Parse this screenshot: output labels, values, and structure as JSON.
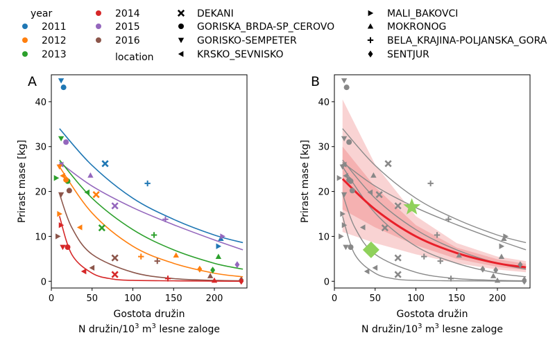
{
  "legend": {
    "year_title": "year",
    "location_title": "location",
    "years": [
      {
        "label": "2011",
        "color": "#1f77b4"
      },
      {
        "label": "2012",
        "color": "#ff7f0e"
      },
      {
        "label": "2013",
        "color": "#2ca02c"
      },
      {
        "label": "2014",
        "color": "#d62728"
      },
      {
        "label": "2015",
        "color": "#9467bd"
      },
      {
        "label": "2016",
        "color": "#8c564b"
      }
    ],
    "locations": [
      {
        "label": "DEKANI",
        "marker": "x"
      },
      {
        "label": "GORISKA_BRDA-SP_CEROVO",
        "marker": "circle"
      },
      {
        "label": "GORISKO-SEMPETER",
        "marker": "tri-down"
      },
      {
        "label": "KRSKO_SEVNISKO",
        "marker": "tri-left"
      },
      {
        "label": "MALI_BAKOVCI",
        "marker": "tri-right"
      },
      {
        "label": "MOKRONOG",
        "marker": "tri-up"
      },
      {
        "label": "BELA_KRAJINA-POLJANSKA_GORA",
        "marker": "plus"
      },
      {
        "label": "SENTJUR",
        "marker": "diamond"
      }
    ]
  },
  "chart_data": [
    {
      "type": "scatter",
      "panel_label": "A",
      "xlabel": "Gostota družin",
      "xlabel2": "N družin/10",
      "xlabel2_sup": "3",
      "xlabel2_mid": " m",
      "xlabel2_sup2": "3",
      "xlabel2_end": " lesne zaloge",
      "ylabel": "Prirast mase [kg]",
      "xlim": [
        0,
        240
      ],
      "ylim": [
        -1.5,
        46
      ],
      "xticks": [
        "0",
        "50",
        "100",
        "150",
        "200"
      ],
      "xtick_values": [
        0,
        50,
        100,
        150,
        200
      ],
      "yticks": [
        "0",
        "10",
        "20",
        "30",
        "40"
      ],
      "ytick_values": [
        0,
        10,
        20,
        30,
        40
      ],
      "fit_curves": [
        {
          "year": "2011",
          "color": "#1f77b4",
          "x": [
            10,
            50,
            100,
            150,
            200,
            235
          ],
          "y": [
            34,
            25.8,
            18.5,
            13.8,
            10.3,
            8.6
          ]
        },
        {
          "year": "2015",
          "color": "#9467bd",
          "x": [
            10,
            50,
            100,
            150,
            200,
            235
          ],
          "y": [
            26.5,
            21.2,
            16.4,
            12.6,
            9.2,
            7
          ]
        },
        {
          "year": "2013",
          "color": "#2ca02c",
          "x": [
            10,
            50,
            100,
            150,
            200,
            235
          ],
          "y": [
            27,
            18.5,
            11.5,
            7,
            4,
            2.7
          ]
        },
        {
          "year": "2012",
          "color": "#ff7f0e",
          "x": [
            10,
            50,
            100,
            150,
            200,
            235
          ],
          "y": [
            25.5,
            15.2,
            7.8,
            4,
            1.8,
            1
          ]
        },
        {
          "year": "2016",
          "color": "#8c564b",
          "x": [
            10,
            25,
            50,
            100,
            150,
            200,
            235
          ],
          "y": [
            19.5,
            12,
            6,
            2,
            0.6,
            0.2,
            0.1
          ]
        },
        {
          "year": "2014",
          "color": "#d62728",
          "x": [
            10,
            25,
            50,
            75,
            100,
            150,
            235
          ],
          "y": [
            14.5,
            6,
            1.8,
            0.5,
            0.2,
            0.1,
            0
          ]
        }
      ],
      "points": [
        {
          "x": 12,
          "y": 44.7,
          "year": "2011",
          "marker": "tri-down"
        },
        {
          "x": 15,
          "y": 43.2,
          "year": "2011",
          "marker": "circle"
        },
        {
          "x": 66,
          "y": 26.2,
          "year": "2011",
          "marker": "x"
        },
        {
          "x": 118,
          "y": 21.8,
          "year": "2011",
          "marker": "plus"
        },
        {
          "x": 205,
          "y": 7.8,
          "year": "2011",
          "marker": "tri-right"
        },
        {
          "x": 208,
          "y": 9.5,
          "year": "2011",
          "marker": "tri-up"
        },
        {
          "x": 18,
          "y": 31,
          "year": "2015",
          "marker": "circle"
        },
        {
          "x": 12,
          "y": 26,
          "year": "2015",
          "marker": "tri-left"
        },
        {
          "x": 48,
          "y": 23.6,
          "year": "2015",
          "marker": "tri-up"
        },
        {
          "x": 78,
          "y": 16.8,
          "year": "2015",
          "marker": "x"
        },
        {
          "x": 140,
          "y": 13.8,
          "year": "2015",
          "marker": "plus"
        },
        {
          "x": 210,
          "y": 10,
          "year": "2015",
          "marker": "tri-right"
        },
        {
          "x": 228,
          "y": 3.7,
          "year": "2015",
          "marker": "diamond"
        },
        {
          "x": 12,
          "y": 31.8,
          "year": "2013",
          "marker": "tri-down"
        },
        {
          "x": 6,
          "y": 23,
          "year": "2013",
          "marker": "tri-right"
        },
        {
          "x": 20,
          "y": 22.3,
          "year": "2013",
          "marker": "circle"
        },
        {
          "x": 44,
          "y": 19.8,
          "year": "2013",
          "marker": "tri-left"
        },
        {
          "x": 62,
          "y": 11.9,
          "year": "2013",
          "marker": "x"
        },
        {
          "x": 126,
          "y": 10.3,
          "year": "2013",
          "marker": "plus"
        },
        {
          "x": 198,
          "y": 2.5,
          "year": "2013",
          "marker": "diamond"
        },
        {
          "x": 205,
          "y": 5.5,
          "year": "2013",
          "marker": "tri-up"
        },
        {
          "x": 10,
          "y": 25.5,
          "year": "2012",
          "marker": "tri-down"
        },
        {
          "x": 14,
          "y": 23.5,
          "year": "2012",
          "marker": "tri-left"
        },
        {
          "x": 10,
          "y": 15,
          "year": "2012",
          "marker": "tri-right"
        },
        {
          "x": 18,
          "y": 22.6,
          "year": "2012",
          "marker": "circle"
        },
        {
          "x": 55,
          "y": 19.3,
          "year": "2012",
          "marker": "x"
        },
        {
          "x": 35,
          "y": 12,
          "year": "2012",
          "marker": "tri-left"
        },
        {
          "x": 110,
          "y": 5.5,
          "year": "2012",
          "marker": "plus"
        },
        {
          "x": 153,
          "y": 5.8,
          "year": "2012",
          "marker": "tri-up"
        },
        {
          "x": 182,
          "y": 2.7,
          "year": "2012",
          "marker": "diamond"
        },
        {
          "x": 12,
          "y": 19.3,
          "year": "2016",
          "marker": "tri-down"
        },
        {
          "x": 22,
          "y": 20.2,
          "year": "2016",
          "marker": "circle"
        },
        {
          "x": 8,
          "y": 10,
          "year": "2016",
          "marker": "tri-right"
        },
        {
          "x": 50,
          "y": 3,
          "year": "2016",
          "marker": "tri-left"
        },
        {
          "x": 78,
          "y": 5.2,
          "year": "2016",
          "marker": "x"
        },
        {
          "x": 130,
          "y": 4.5,
          "year": "2016",
          "marker": "plus"
        },
        {
          "x": 195,
          "y": 1.2,
          "year": "2016",
          "marker": "tri-up"
        },
        {
          "x": 233,
          "y": 0.3,
          "year": "2016",
          "marker": "diamond"
        },
        {
          "x": 12,
          "y": 12.5,
          "year": "2014",
          "marker": "tri-right"
        },
        {
          "x": 14,
          "y": 7.6,
          "year": "2014",
          "marker": "tri-down"
        },
        {
          "x": 20,
          "y": 7.6,
          "year": "2014",
          "marker": "circle"
        },
        {
          "x": 40,
          "y": 2.2,
          "year": "2014",
          "marker": "tri-left"
        },
        {
          "x": 78,
          "y": 1.5,
          "year": "2014",
          "marker": "x"
        },
        {
          "x": 143,
          "y": 0.6,
          "year": "2014",
          "marker": "plus"
        },
        {
          "x": 200,
          "y": 0.2,
          "year": "2014",
          "marker": "tri-up"
        },
        {
          "x": 233,
          "y": 0,
          "year": "2014",
          "marker": "diamond"
        }
      ]
    },
    {
      "type": "scatter",
      "panel_label": "B",
      "xlabel": "Gostota družin",
      "xlabel2": "N družin/10",
      "xlabel2_sup": "3",
      "xlabel2_mid": " m",
      "xlabel2_sup2": "3",
      "xlabel2_end": " lesne zaloge",
      "ylabel": "Prirast mase [kg]",
      "xlim": [
        0,
        240
      ],
      "ylim": [
        -1.5,
        46
      ],
      "xticks": [
        "0",
        "50",
        "100",
        "150",
        "200"
      ],
      "xtick_values": [
        0,
        50,
        100,
        150,
        200
      ],
      "yticks": [
        "0",
        "10",
        "20",
        "30",
        "40"
      ],
      "ytick_values": [
        0,
        10,
        20,
        30,
        40
      ],
      "point_color": "#888888",
      "mean_curve": {
        "color": "#e8202a",
        "x": [
          10,
          50,
          100,
          150,
          200,
          235
        ],
        "y": [
          22.8,
          16,
          10,
          6.3,
          4,
          3.1
        ]
      },
      "band_outer": {
        "color": "#f7c1c1",
        "x": [
          10,
          50,
          100,
          150,
          200,
          235
        ],
        "upper": [
          40.5,
          26,
          14.5,
          8.5,
          5.5,
          4.5
        ],
        "lower": [
          11,
          8.5,
          6,
          4,
          2.6,
          2
        ]
      },
      "band_inner": {
        "color": "#f29b9b",
        "x": [
          10,
          50,
          100,
          150,
          200,
          235
        ],
        "upper": [
          30,
          21,
          12.5,
          7.5,
          4.9,
          3.9
        ],
        "lower": [
          16,
          12,
          8,
          5,
          3.2,
          2.5
        ]
      },
      "gray_curves": [
        {
          "x": [
            10,
            50,
            100,
            150,
            200,
            235
          ],
          "y": [
            34,
            25.8,
            18.5,
            13.8,
            10.3,
            8.6
          ]
        },
        {
          "x": [
            10,
            50,
            100,
            150,
            200,
            235
          ],
          "y": [
            26.5,
            21.2,
            16.4,
            12.6,
            9.2,
            7
          ]
        },
        {
          "x": [
            10,
            50,
            100,
            150,
            200,
            235
          ],
          "y": [
            27,
            18.5,
            11.5,
            7,
            4,
            2.7
          ]
        },
        {
          "x": [
            10,
            50,
            100,
            150,
            200,
            235
          ],
          "y": [
            25.5,
            15.2,
            7.8,
            4,
            1.8,
            1
          ]
        },
        {
          "x": [
            10,
            25,
            50,
            100,
            150,
            200,
            235
          ],
          "y": [
            19.5,
            12,
            6,
            2,
            0.6,
            0.2,
            0.1
          ]
        },
        {
          "x": [
            10,
            25,
            50,
            75,
            100,
            150,
            235
          ],
          "y": [
            14.5,
            6,
            1.8,
            0.5,
            0.2,
            0.1,
            0
          ]
        }
      ],
      "highlights": [
        {
          "x": 95,
          "y": 16.5,
          "marker": "star",
          "color": "#8fd15b"
        },
        {
          "x": 45,
          "y": 7,
          "marker": "big-diamond",
          "color": "#8fd15b"
        }
      ]
    }
  ]
}
